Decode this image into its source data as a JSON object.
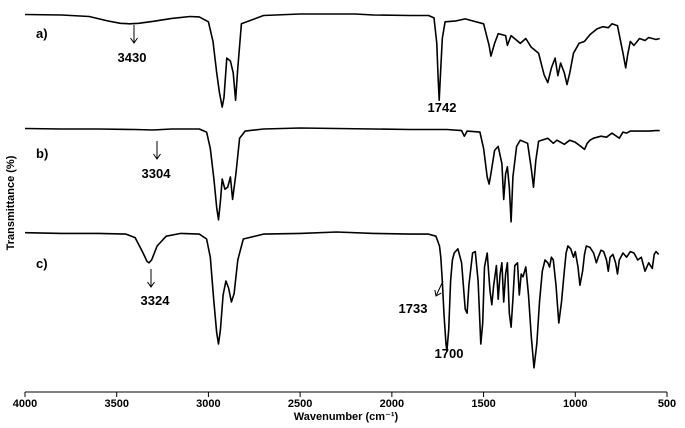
{
  "chart_data": {
    "type": "line",
    "xlabel": "Wavenumber (cm⁻¹)",
    "ylabel": "Transmittance (%)",
    "xlim": [
      4000,
      500
    ],
    "x_reversed": true,
    "x_ticks": [
      4000,
      3500,
      3000,
      2500,
      2000,
      1500,
      1000,
      500
    ],
    "y_ticks": [],
    "grid": false,
    "legend": "none",
    "line_color": "#000000",
    "series": [
      {
        "name": "a)",
        "points": [
          [
            4000,
            0.995
          ],
          [
            3800,
            0.99
          ],
          [
            3650,
            0.975
          ],
          [
            3550,
            0.93
          ],
          [
            3480,
            0.905
          ],
          [
            3430,
            0.9
          ],
          [
            3380,
            0.905
          ],
          [
            3300,
            0.925
          ],
          [
            3200,
            0.955
          ],
          [
            3100,
            0.975
          ],
          [
            3050,
            0.97
          ],
          [
            3000,
            0.92
          ],
          [
            2975,
            0.72
          ],
          [
            2955,
            0.4
          ],
          [
            2940,
            0.2
          ],
          [
            2925,
            0.05
          ],
          [
            2915,
            0.15
          ],
          [
            2900,
            0.55
          ],
          [
            2880,
            0.52
          ],
          [
            2865,
            0.4
          ],
          [
            2852,
            0.12
          ],
          [
            2840,
            0.45
          ],
          [
            2820,
            0.9
          ],
          [
            2700,
            0.985
          ],
          [
            2500,
            1.0
          ],
          [
            2350,
            1.0
          ],
          [
            2200,
            1.0
          ],
          [
            2100,
            0.99
          ],
          [
            1900,
            0.985
          ],
          [
            1800,
            0.985
          ],
          [
            1770,
            0.96
          ],
          [
            1755,
            0.7
          ],
          [
            1748,
            0.35
          ],
          [
            1742,
            0.12
          ],
          [
            1736,
            0.35
          ],
          [
            1725,
            0.75
          ],
          [
            1710,
            0.92
          ],
          [
            1650,
            0.93
          ],
          [
            1600,
            0.95
          ],
          [
            1560,
            0.93
          ],
          [
            1500,
            0.9
          ],
          [
            1470,
            0.68
          ],
          [
            1460,
            0.57
          ],
          [
            1440,
            0.7
          ],
          [
            1420,
            0.8
          ],
          [
            1380,
            0.78
          ],
          [
            1370,
            0.68
          ],
          [
            1350,
            0.78
          ],
          [
            1300,
            0.7
          ],
          [
            1270,
            0.75
          ],
          [
            1240,
            0.66
          ],
          [
            1200,
            0.6
          ],
          [
            1170,
            0.38
          ],
          [
            1150,
            0.3
          ],
          [
            1130,
            0.45
          ],
          [
            1110,
            0.55
          ],
          [
            1095,
            0.37
          ],
          [
            1080,
            0.5
          ],
          [
            1060,
            0.4
          ],
          [
            1045,
            0.28
          ],
          [
            1030,
            0.4
          ],
          [
            1010,
            0.6
          ],
          [
            980,
            0.7
          ],
          [
            950,
            0.72
          ],
          [
            920,
            0.79
          ],
          [
            900,
            0.82
          ],
          [
            880,
            0.85
          ],
          [
            850,
            0.87
          ],
          [
            820,
            0.86
          ],
          [
            800,
            0.9
          ],
          [
            770,
            0.88
          ],
          [
            740,
            0.6
          ],
          [
            725,
            0.45
          ],
          [
            715,
            0.58
          ],
          [
            700,
            0.72
          ],
          [
            680,
            0.68
          ],
          [
            650,
            0.75
          ],
          [
            620,
            0.73
          ],
          [
            600,
            0.76
          ],
          [
            560,
            0.74
          ],
          [
            540,
            0.75
          ]
        ]
      },
      {
        "name": "b)",
        "points": [
          [
            4000,
            0.995
          ],
          [
            3800,
            0.99
          ],
          [
            3600,
            0.99
          ],
          [
            3400,
            0.985
          ],
          [
            3304,
            0.98
          ],
          [
            3200,
            0.99
          ],
          [
            3050,
            0.99
          ],
          [
            3010,
            0.96
          ],
          [
            2990,
            0.8
          ],
          [
            2970,
            0.5
          ],
          [
            2955,
            0.22
          ],
          [
            2945,
            0.1
          ],
          [
            2935,
            0.28
          ],
          [
            2925,
            0.5
          ],
          [
            2910,
            0.4
          ],
          [
            2895,
            0.42
          ],
          [
            2880,
            0.52
          ],
          [
            2868,
            0.3
          ],
          [
            2850,
            0.55
          ],
          [
            2830,
            0.9
          ],
          [
            2800,
            0.97
          ],
          [
            2700,
            0.99
          ],
          [
            2500,
            1.0
          ],
          [
            2300,
            0.995
          ],
          [
            2100,
            0.99
          ],
          [
            1900,
            0.985
          ],
          [
            1700,
            0.985
          ],
          [
            1620,
            0.975
          ],
          [
            1605,
            0.92
          ],
          [
            1590,
            0.97
          ],
          [
            1520,
            0.96
          ],
          [
            1500,
            0.8
          ],
          [
            1480,
            0.52
          ],
          [
            1470,
            0.45
          ],
          [
            1460,
            0.55
          ],
          [
            1440,
            0.78
          ],
          [
            1420,
            0.82
          ],
          [
            1400,
            0.65
          ],
          [
            1390,
            0.3
          ],
          [
            1380,
            0.55
          ],
          [
            1370,
            0.62
          ],
          [
            1360,
            0.42
          ],
          [
            1350,
            0.08
          ],
          [
            1340,
            0.52
          ],
          [
            1320,
            0.82
          ],
          [
            1300,
            0.88
          ],
          [
            1260,
            0.85
          ],
          [
            1240,
            0.6
          ],
          [
            1228,
            0.42
          ],
          [
            1215,
            0.68
          ],
          [
            1200,
            0.87
          ],
          [
            1150,
            0.9
          ],
          [
            1120,
            0.85
          ],
          [
            1100,
            0.88
          ],
          [
            1060,
            0.84
          ],
          [
            1030,
            0.88
          ],
          [
            1000,
            0.86
          ],
          [
            970,
            0.82
          ],
          [
            950,
            0.79
          ],
          [
            935,
            0.85
          ],
          [
            920,
            0.88
          ],
          [
            900,
            0.9
          ],
          [
            860,
            0.92
          ],
          [
            830,
            0.91
          ],
          [
            800,
            0.95
          ],
          [
            760,
            0.9
          ],
          [
            740,
            0.96
          ],
          [
            720,
            0.95
          ],
          [
            700,
            0.97
          ],
          [
            600,
            0.97
          ],
          [
            560,
            0.975
          ],
          [
            540,
            0.975
          ]
        ]
      },
      {
        "name": "c)",
        "points": [
          [
            4000,
            0.995
          ],
          [
            3800,
            0.99
          ],
          [
            3600,
            0.99
          ],
          [
            3450,
            0.985
          ],
          [
            3400,
            0.96
          ],
          [
            3360,
            0.86
          ],
          [
            3335,
            0.79
          ],
          [
            3324,
            0.78
          ],
          [
            3310,
            0.8
          ],
          [
            3280,
            0.9
          ],
          [
            3230,
            0.97
          ],
          [
            3150,
            0.99
          ],
          [
            3050,
            0.985
          ],
          [
            3010,
            0.95
          ],
          [
            2990,
            0.82
          ],
          [
            2970,
            0.5
          ],
          [
            2955,
            0.28
          ],
          [
            2945,
            0.2
          ],
          [
            2935,
            0.3
          ],
          [
            2920,
            0.55
          ],
          [
            2905,
            0.65
          ],
          [
            2890,
            0.6
          ],
          [
            2875,
            0.5
          ],
          [
            2860,
            0.56
          ],
          [
            2840,
            0.8
          ],
          [
            2810,
            0.95
          ],
          [
            2700,
            0.985
          ],
          [
            2500,
            0.99
          ],
          [
            2300,
            1.0
          ],
          [
            2100,
            0.99
          ],
          [
            1900,
            0.985
          ],
          [
            1800,
            0.985
          ],
          [
            1760,
            0.97
          ],
          [
            1740,
            0.9
          ],
          [
            1733,
            0.82
          ],
          [
            1725,
            0.65
          ],
          [
            1715,
            0.4
          ],
          [
            1705,
            0.2
          ],
          [
            1700,
            0.15
          ],
          [
            1690,
            0.3
          ],
          [
            1680,
            0.65
          ],
          [
            1670,
            0.8
          ],
          [
            1660,
            0.85
          ],
          [
            1640,
            0.88
          ],
          [
            1620,
            0.78
          ],
          [
            1600,
            0.45
          ],
          [
            1590,
            0.42
          ],
          [
            1580,
            0.62
          ],
          [
            1560,
            0.85
          ],
          [
            1545,
            0.86
          ],
          [
            1530,
            0.65
          ],
          [
            1515,
            0.2
          ],
          [
            1505,
            0.35
          ],
          [
            1495,
            0.75
          ],
          [
            1480,
            0.85
          ],
          [
            1465,
            0.58
          ],
          [
            1455,
            0.48
          ],
          [
            1445,
            0.62
          ],
          [
            1430,
            0.76
          ],
          [
            1420,
            0.52
          ],
          [
            1410,
            0.7
          ],
          [
            1400,
            0.78
          ],
          [
            1390,
            0.5
          ],
          [
            1380,
            0.7
          ],
          [
            1370,
            0.78
          ],
          [
            1360,
            0.42
          ],
          [
            1350,
            0.32
          ],
          [
            1340,
            0.52
          ],
          [
            1330,
            0.76
          ],
          [
            1315,
            0.78
          ],
          [
            1305,
            0.55
          ],
          [
            1295,
            0.7
          ],
          [
            1285,
            0.68
          ],
          [
            1270,
            0.75
          ],
          [
            1255,
            0.55
          ],
          [
            1240,
            0.25
          ],
          [
            1225,
            0.03
          ],
          [
            1210,
            0.2
          ],
          [
            1195,
            0.5
          ],
          [
            1180,
            0.72
          ],
          [
            1165,
            0.8
          ],
          [
            1150,
            0.78
          ],
          [
            1140,
            0.75
          ],
          [
            1130,
            0.82
          ],
          [
            1120,
            0.8
          ],
          [
            1105,
            0.62
          ],
          [
            1090,
            0.35
          ],
          [
            1075,
            0.5
          ],
          [
            1060,
            0.72
          ],
          [
            1050,
            0.85
          ],
          [
            1040,
            0.9
          ],
          [
            1025,
            0.88
          ],
          [
            1010,
            0.82
          ],
          [
            1000,
            0.86
          ],
          [
            985,
            0.75
          ],
          [
            975,
            0.62
          ],
          [
            960,
            0.72
          ],
          [
            950,
            0.84
          ],
          [
            940,
            0.9
          ],
          [
            920,
            0.89
          ],
          [
            900,
            0.85
          ],
          [
            885,
            0.78
          ],
          [
            875,
            0.82
          ],
          [
            860,
            0.87
          ],
          [
            845,
            0.86
          ],
          [
            830,
            0.8
          ],
          [
            820,
            0.72
          ],
          [
            810,
            0.82
          ],
          [
            795,
            0.84
          ],
          [
            780,
            0.78
          ],
          [
            770,
            0.7
          ],
          [
            760,
            0.8
          ],
          [
            740,
            0.85
          ],
          [
            720,
            0.82
          ],
          [
            700,
            0.86
          ],
          [
            680,
            0.85
          ],
          [
            660,
            0.8
          ],
          [
            640,
            0.82
          ],
          [
            620,
            0.72
          ],
          [
            600,
            0.78
          ],
          [
            580,
            0.74
          ],
          [
            570,
            0.84
          ],
          [
            560,
            0.86
          ],
          [
            545,
            0.84
          ]
        ]
      }
    ],
    "annotations": [
      {
        "text": "3430",
        "series": "a)",
        "x": 3430
      },
      {
        "text": "1742",
        "series": "a)",
        "x": 1742
      },
      {
        "text": "3304",
        "series": "b)",
        "x": 3304
      },
      {
        "text": "3324",
        "series": "c)",
        "x": 3324
      },
      {
        "text": "1733",
        "series": "c)",
        "x": 1733
      },
      {
        "text": "1700",
        "series": "c)",
        "x": 1700
      }
    ]
  }
}
